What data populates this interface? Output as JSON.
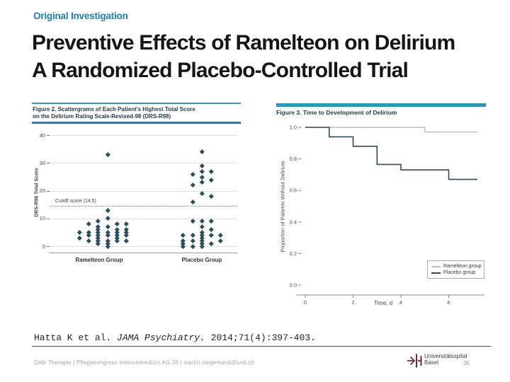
{
  "slide": {
    "eyebrow": "Original Investigation",
    "title_line1": "Preventive Effects of Ramelteon on Delirium",
    "title_line2": "A Randomized Placebo-Controlled Trial",
    "citation": {
      "prefix": "Hatta K et al. ",
      "journal": "JAMA Psychiatry.",
      "suffix": " 2014;71(4):397-403."
    },
    "footer_text": "Delir Therapie | Pflegekongress Intensivmedizin AG 20 | martin.siegemund@usb.ch",
    "logo": {
      "line1": "Universitätsspital",
      "line2": "Basel"
    },
    "page_number": "36"
  },
  "colors": {
    "accent_teal": "#2f9cbe",
    "eyebrow_teal": "#1d7fa7",
    "rule_blue": "#3579ab",
    "figure_title_text": "#253c49",
    "scatter_marker": "#2d4f5c",
    "ramelteon_line": "#b4c0c8",
    "placebo_line": "#33485c"
  },
  "chart_data": [
    {
      "id": "figure2",
      "type": "scatter",
      "title_lines": [
        "Figure 2. Scattergrams of Each Patient's Highest Total Score",
        "on the Delirium Rating Scale-Revised-98 (DRS-R98)"
      ],
      "ylabel": "DRS-R98 Total Score",
      "ylim": [
        0,
        40
      ],
      "yticks": [
        0,
        10,
        20,
        30,
        40
      ],
      "grid": true,
      "groups": [
        "Ramelteon Group",
        "Placebo Group"
      ],
      "cutoff": {
        "value": 14.5,
        "label": "Cutoff score (14.5)"
      },
      "marker_color": "#2d4f5c",
      "points": {
        "ramelteon": [
          [
            0.158,
            5
          ],
          [
            0.158,
            3
          ],
          [
            0.208,
            8
          ],
          [
            0.208,
            5
          ],
          [
            0.208,
            4
          ],
          [
            0.208,
            2
          ],
          [
            0.257,
            9
          ],
          [
            0.257,
            7
          ],
          [
            0.257,
            6
          ],
          [
            0.257,
            5
          ],
          [
            0.257,
            4
          ],
          [
            0.257,
            3
          ],
          [
            0.257,
            2
          ],
          [
            0.257,
            1
          ],
          [
            0.309,
            33
          ],
          [
            0.309,
            13
          ],
          [
            0.309,
            10
          ],
          [
            0.309,
            7
          ],
          [
            0.309,
            5
          ],
          [
            0.309,
            4
          ],
          [
            0.309,
            2
          ],
          [
            0.309,
            1
          ],
          [
            0.309,
            0
          ],
          [
            0.358,
            8
          ],
          [
            0.358,
            6
          ],
          [
            0.358,
            5
          ],
          [
            0.358,
            4
          ],
          [
            0.358,
            3
          ],
          [
            0.358,
            2
          ],
          [
            0.408,
            8
          ],
          [
            0.408,
            6
          ],
          [
            0.408,
            5
          ],
          [
            0.408,
            4
          ],
          [
            0.408,
            2
          ]
        ],
        "placebo": [
          [
            0.709,
            4
          ],
          [
            0.709,
            2
          ],
          [
            0.709,
            1
          ],
          [
            0.709,
            0
          ],
          [
            0.762,
            26
          ],
          [
            0.762,
            22
          ],
          [
            0.762,
            16
          ],
          [
            0.762,
            9
          ],
          [
            0.762,
            4
          ],
          [
            0.762,
            2
          ],
          [
            0.762,
            0
          ],
          [
            0.811,
            34
          ],
          [
            0.811,
            29
          ],
          [
            0.811,
            27
          ],
          [
            0.811,
            25
          ],
          [
            0.811,
            23
          ],
          [
            0.811,
            19
          ],
          [
            0.811,
            9
          ],
          [
            0.811,
            7
          ],
          [
            0.811,
            5
          ],
          [
            0.811,
            4
          ],
          [
            0.811,
            3
          ],
          [
            0.811,
            2
          ],
          [
            0.811,
            1
          ],
          [
            0.811,
            0
          ],
          [
            0.86,
            27
          ],
          [
            0.86,
            24
          ],
          [
            0.86,
            18
          ],
          [
            0.86,
            9
          ],
          [
            0.86,
            6
          ],
          [
            0.86,
            4
          ],
          [
            0.86,
            1
          ],
          [
            0.909,
            4
          ],
          [
            0.909,
            2
          ]
        ]
      }
    },
    {
      "id": "figure3",
      "type": "line",
      "title": "Figure 3. Time to Development of Delirium",
      "xlabel": "Time, d",
      "ylabel": "Proportion of Patients Without Delirium",
      "xlim": [
        0,
        7.2
      ],
      "ylim": [
        0,
        1.0
      ],
      "xticks": [
        0,
        2,
        4,
        6
      ],
      "yticks": [
        0.0,
        0.2,
        0.4,
        0.6,
        0.8,
        1.0
      ],
      "grid": false,
      "legend_position": "lower right",
      "legend": [
        {
          "name": "Ramelteon group",
          "color": "#b4c0c8"
        },
        {
          "name": "Placebo group",
          "color": "#33485c"
        }
      ],
      "series": [
        {
          "name": "Ramelteon group",
          "color": "#b4c0c8",
          "steps": [
            [
              0,
              1.0
            ],
            [
              5,
              1.0
            ],
            [
              5,
              0.97
            ],
            [
              7.2,
              0.97
            ]
          ]
        },
        {
          "name": "Placebo group",
          "color": "#33485c",
          "steps": [
            [
              0,
              1.0
            ],
            [
              1,
              1.0
            ],
            [
              1,
              0.94
            ],
            [
              2,
              0.94
            ],
            [
              2,
              0.88
            ],
            [
              3,
              0.88
            ],
            [
              3,
              0.765
            ],
            [
              4,
              0.765
            ],
            [
              4,
              0.73
            ],
            [
              6,
              0.73
            ],
            [
              6,
              0.67
            ],
            [
              7.2,
              0.67
            ]
          ]
        }
      ]
    }
  ]
}
